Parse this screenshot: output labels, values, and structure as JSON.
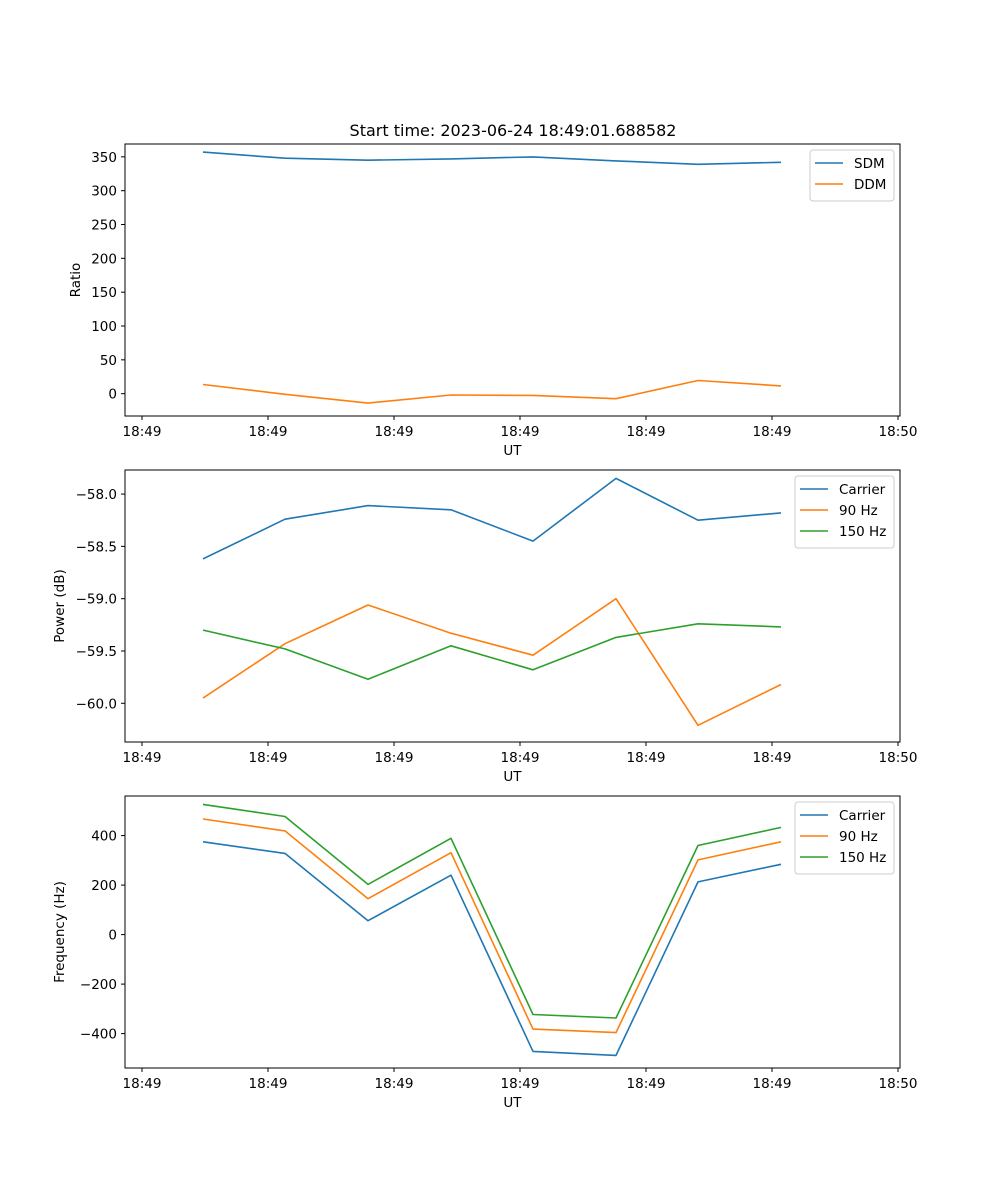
{
  "title": "Start time: 2023-06-24 18:49:01.688582",
  "colors": {
    "blue": "#1f77b4",
    "orange": "#ff7f0e",
    "green": "#2ca02c"
  },
  "chart_data": [
    {
      "type": "line",
      "ylabel": "Ratio",
      "xlabel": "UT",
      "ylim": [
        -33,
        369
      ],
      "yticks": [
        0,
        50,
        100,
        150,
        200,
        250,
        300,
        350
      ],
      "ytick_labels": [
        "0",
        "50",
        "100",
        "150",
        "200",
        "250",
        "300",
        "350"
      ],
      "xtick_labels": [
        "18:49",
        "18:49",
        "18:49",
        "18:49",
        "18:49",
        "18:49",
        "18:50"
      ],
      "legend_position": "upper right",
      "series": [
        {
          "name": "SDM",
          "color": "#1f77b4",
          "values": [
            357,
            348,
            345,
            347,
            350,
            344,
            339,
            342
          ]
        },
        {
          "name": "DDM",
          "color": "#ff7f0e",
          "values": [
            13.5,
            -1,
            -14,
            -2,
            -2.5,
            -7.5,
            19.5,
            11.5
          ]
        }
      ]
    },
    {
      "type": "line",
      "ylabel": "Power (dB)",
      "xlabel": "UT",
      "ylim": [
        -60.37,
        -57.77
      ],
      "yticks": [
        -60.0,
        -59.5,
        -59.0,
        -58.5,
        -58.0
      ],
      "ytick_labels": [
        "−60.0",
        "−59.5",
        "−59.0",
        "−58.5",
        "−58.0"
      ],
      "xtick_labels": [
        "18:49",
        "18:49",
        "18:49",
        "18:49",
        "18:49",
        "18:49",
        "18:50"
      ],
      "legend_position": "upper right",
      "series": [
        {
          "name": "Carrier",
          "color": "#1f77b4",
          "values": [
            -58.62,
            -58.24,
            -58.11,
            -58.15,
            -58.45,
            -57.85,
            -58.25,
            -58.18
          ]
        },
        {
          "name": "90 Hz",
          "color": "#ff7f0e",
          "values": [
            -59.95,
            -59.43,
            -59.06,
            -59.33,
            -59.54,
            -59.0,
            -60.21,
            -59.82
          ]
        },
        {
          "name": "150 Hz",
          "color": "#2ca02c",
          "values": [
            -59.3,
            -59.48,
            -59.77,
            -59.45,
            -59.68,
            -59.37,
            -59.24,
            -59.27
          ]
        }
      ]
    },
    {
      "type": "line",
      "ylabel": "Frequency (Hz)",
      "xlabel": "UT",
      "ylim": [
        -539,
        560
      ],
      "yticks": [
        -400,
        -200,
        0,
        200,
        400
      ],
      "ytick_labels": [
        "−400",
        "−200",
        "0",
        "200",
        "400"
      ],
      "xtick_labels": [
        "18:49",
        "18:49",
        "18:49",
        "18:49",
        "18:49",
        "18:49",
        "18:50"
      ],
      "legend_position": "upper right",
      "series": [
        {
          "name": "Carrier",
          "color": "#1f77b4",
          "values": [
            375,
            328,
            56,
            240,
            -472,
            -488,
            213,
            284
          ]
        },
        {
          "name": "90 Hz",
          "color": "#ff7f0e",
          "values": [
            467,
            419,
            145,
            331,
            -382,
            -396,
            302,
            375
          ]
        },
        {
          "name": "150 Hz",
          "color": "#2ca02c",
          "values": [
            526,
            477,
            203,
            389,
            -323,
            -337,
            360,
            433
          ]
        }
      ]
    }
  ]
}
